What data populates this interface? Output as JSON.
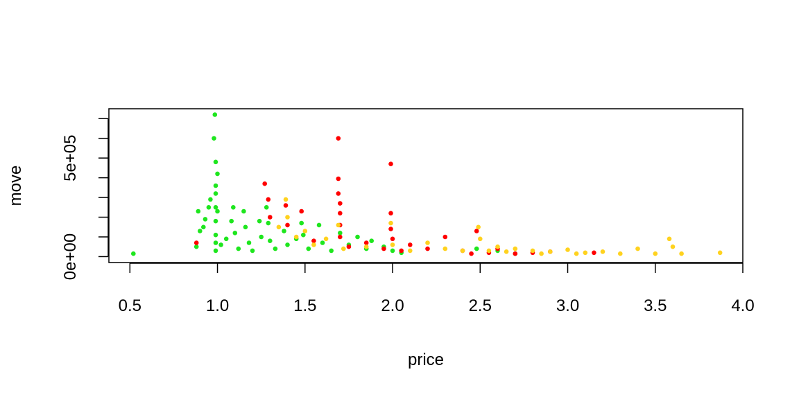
{
  "chart_data": {
    "type": "scatter",
    "title": "",
    "xlabel": "price",
    "ylabel": "move",
    "xlim": [
      0.38,
      4.0
    ],
    "ylim": [
      -30000,
      750000
    ],
    "x_ticks": [
      {
        "value": 0.5,
        "label": "0.5"
      },
      {
        "value": 1.0,
        "label": "1.0"
      },
      {
        "value": 1.5,
        "label": "1.5"
      },
      {
        "value": 2.0,
        "label": "2.0"
      },
      {
        "value": 2.5,
        "label": "2.5"
      },
      {
        "value": 3.0,
        "label": "3.0"
      },
      {
        "value": 3.5,
        "label": "3.5"
      },
      {
        "value": 4.0,
        "label": "4.0"
      }
    ],
    "y_ticks_minor": [
      0,
      100000,
      200000,
      300000,
      400000,
      500000,
      600000,
      700000
    ],
    "y_ticks_labeled": [
      {
        "value": 0,
        "label": "0e+00"
      },
      {
        "value": 500000,
        "label": "5e+05"
      }
    ],
    "grid": false,
    "legend": "none",
    "series": [
      {
        "color": "#1EE61E",
        "points": [
          [
            0.52,
            15000
          ],
          [
            0.88,
            50000
          ],
          [
            0.89,
            230000
          ],
          [
            0.9,
            130000
          ],
          [
            0.92,
            150000
          ],
          [
            0.93,
            190000
          ],
          [
            0.95,
            250000
          ],
          [
            0.96,
            290000
          ],
          [
            0.98,
            600000
          ],
          [
            0.99,
            480000
          ],
          [
            0.99,
            360000
          ],
          [
            0.99,
            320000
          ],
          [
            0.99,
            250000
          ],
          [
            0.99,
            180000
          ],
          [
            0.99,
            110000
          ],
          [
            0.99,
            70000
          ],
          [
            0.99,
            30000
          ],
          [
            0.985,
            720000
          ],
          [
            1.0,
            420000
          ],
          [
            1.0,
            230000
          ],
          [
            1.02,
            60000
          ],
          [
            1.05,
            90000
          ],
          [
            1.08,
            180000
          ],
          [
            1.09,
            250000
          ],
          [
            1.1,
            120000
          ],
          [
            1.12,
            40000
          ],
          [
            1.15,
            230000
          ],
          [
            1.16,
            150000
          ],
          [
            1.18,
            70000
          ],
          [
            1.2,
            30000
          ],
          [
            1.24,
            180000
          ],
          [
            1.25,
            100000
          ],
          [
            1.28,
            250000
          ],
          [
            1.29,
            170000
          ],
          [
            1.3,
            80000
          ],
          [
            1.33,
            40000
          ],
          [
            1.38,
            130000
          ],
          [
            1.4,
            60000
          ],
          [
            1.45,
            90000
          ],
          [
            1.48,
            170000
          ],
          [
            1.49,
            110000
          ],
          [
            1.52,
            40000
          ],
          [
            1.58,
            160000
          ],
          [
            1.6,
            70000
          ],
          [
            1.65,
            30000
          ],
          [
            1.7,
            120000
          ],
          [
            1.75,
            60000
          ],
          [
            1.8,
            100000
          ],
          [
            1.85,
            40000
          ],
          [
            1.88,
            80000
          ],
          [
            1.95,
            50000
          ],
          [
            2.0,
            30000
          ],
          [
            2.05,
            20000
          ],
          [
            2.48,
            40000
          ],
          [
            2.6,
            30000
          ],
          [
            2.7,
            15000
          ]
        ]
      },
      {
        "color": "#FF0000",
        "points": [
          [
            0.88,
            70000
          ],
          [
            1.27,
            370000
          ],
          [
            1.29,
            290000
          ],
          [
            1.3,
            200000
          ],
          [
            1.39,
            260000
          ],
          [
            1.4,
            160000
          ],
          [
            1.48,
            230000
          ],
          [
            1.55,
            80000
          ],
          [
            1.69,
            600000
          ],
          [
            1.69,
            395000
          ],
          [
            1.69,
            320000
          ],
          [
            1.7,
            270000
          ],
          [
            1.7,
            220000
          ],
          [
            1.7,
            160000
          ],
          [
            1.7,
            100000
          ],
          [
            1.75,
            50000
          ],
          [
            1.85,
            70000
          ],
          [
            1.95,
            40000
          ],
          [
            1.99,
            470000
          ],
          [
            1.99,
            220000
          ],
          [
            1.99,
            140000
          ],
          [
            2.0,
            90000
          ],
          [
            2.05,
            30000
          ],
          [
            2.1,
            60000
          ],
          [
            2.2,
            40000
          ],
          [
            2.3,
            100000
          ],
          [
            2.4,
            30000
          ],
          [
            2.45,
            15000
          ],
          [
            2.48,
            130000
          ],
          [
            2.55,
            20000
          ],
          [
            2.6,
            40000
          ],
          [
            2.7,
            15000
          ],
          [
            2.8,
            20000
          ],
          [
            2.9,
            25000
          ],
          [
            3.15,
            20000
          ]
        ]
      },
      {
        "color": "#FFD21E",
        "points": [
          [
            1.35,
            150000
          ],
          [
            1.39,
            290000
          ],
          [
            1.4,
            200000
          ],
          [
            1.45,
            100000
          ],
          [
            1.5,
            130000
          ],
          [
            1.55,
            60000
          ],
          [
            1.62,
            90000
          ],
          [
            1.69,
            160000
          ],
          [
            1.72,
            40000
          ],
          [
            1.85,
            50000
          ],
          [
            1.99,
            170000
          ],
          [
            2.0,
            60000
          ],
          [
            2.1,
            30000
          ],
          [
            2.2,
            70000
          ],
          [
            2.3,
            40000
          ],
          [
            2.4,
            30000
          ],
          [
            2.49,
            150000
          ],
          [
            2.5,
            90000
          ],
          [
            2.55,
            30000
          ],
          [
            2.6,
            50000
          ],
          [
            2.65,
            25000
          ],
          [
            2.7,
            40000
          ],
          [
            2.8,
            30000
          ],
          [
            2.85,
            15000
          ],
          [
            2.9,
            25000
          ],
          [
            3.0,
            35000
          ],
          [
            3.05,
            15000
          ],
          [
            3.1,
            20000
          ],
          [
            3.2,
            25000
          ],
          [
            3.3,
            15000
          ],
          [
            3.4,
            40000
          ],
          [
            3.5,
            15000
          ],
          [
            3.58,
            90000
          ],
          [
            3.6,
            50000
          ],
          [
            3.65,
            15000
          ],
          [
            3.87,
            20000
          ]
        ]
      }
    ]
  }
}
